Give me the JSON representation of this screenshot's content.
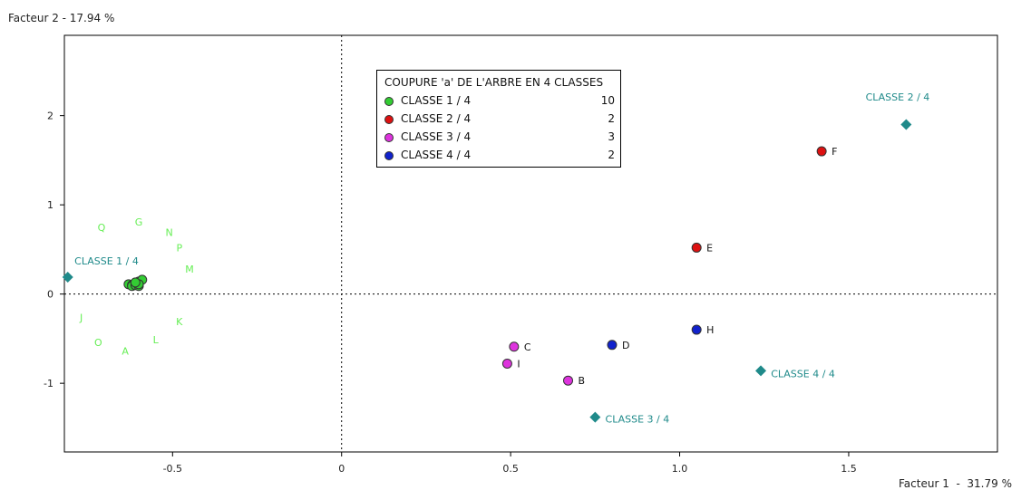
{
  "chart_data": {
    "type": "scatter",
    "title": "",
    "xlabel": "Facteur 1  -  31.79 %",
    "ylabel": "Facteur 2  -  17.94 %",
    "xlim": [
      -0.82,
      1.94
    ],
    "ylim": [
      -1.77,
      2.9
    ],
    "xticks": [
      -0.5,
      0,
      0.5,
      1.0,
      1.5
    ],
    "xtick_labels": [
      "-0.5",
      "0",
      "0.5",
      "1.0",
      "1.5"
    ],
    "yticks": [
      -1,
      0,
      1,
      2
    ],
    "ytick_labels": [
      "-1",
      "0",
      "1",
      "2"
    ],
    "grid": false,
    "reference_lines": {
      "x": 0,
      "y": 0,
      "style": "dotted"
    },
    "legend": {
      "title": "COUPURE 'a' DE L'ARBRE EN  4 CLASSES",
      "position": "top-center",
      "entries": [
        {
          "label": "CLASSE  1 / 4",
          "count": "10",
          "color": "#33cc33"
        },
        {
          "label": "CLASSE  2 / 4",
          "count": "2",
          "color": "#dd1111"
        },
        {
          "label": "CLASSE  3 / 4",
          "count": "3",
          "color": "#dd33dd"
        },
        {
          "label": "CLASSE  4 / 4",
          "count": "2",
          "color": "#1122cc"
        }
      ]
    },
    "series": [
      {
        "name": "CLASSE  1 / 4",
        "color": "#33cc33",
        "label_color": "#66ee55",
        "points": [
          {
            "label": "Q",
            "x": -0.63,
            "y": 0.11
          },
          {
            "label": "G",
            "x": -0.61,
            "y": 0.12
          },
          {
            "label": "N",
            "x": -0.62,
            "y": 0.1
          },
          {
            "label": "P",
            "x": -0.6,
            "y": 0.14
          },
          {
            "label": "M",
            "x": -0.59,
            "y": 0.16
          },
          {
            "label": "J",
            "x": -0.62,
            "y": 0.09
          },
          {
            "label": "O",
            "x": -0.61,
            "y": 0.1
          },
          {
            "label": "A",
            "x": -0.6,
            "y": 0.09
          },
          {
            "label": "L",
            "x": -0.6,
            "y": 0.11
          },
          {
            "label": "K",
            "x": -0.61,
            "y": 0.13
          }
        ],
        "label_points": [
          {
            "label": "Q",
            "x": -0.71,
            "y": 0.75
          },
          {
            "label": "G",
            "x": -0.6,
            "y": 0.81
          },
          {
            "label": "N",
            "x": -0.51,
            "y": 0.69
          },
          {
            "label": "P",
            "x": -0.48,
            "y": 0.52
          },
          {
            "label": "M",
            "x": -0.45,
            "y": 0.28
          },
          {
            "label": "J",
            "x": -0.77,
            "y": -0.26
          },
          {
            "label": "O",
            "x": -0.72,
            "y": -0.54
          },
          {
            "label": "A",
            "x": -0.64,
            "y": -0.64
          },
          {
            "label": "L",
            "x": -0.55,
            "y": -0.51
          },
          {
            "label": "K",
            "x": -0.48,
            "y": -0.31
          }
        ]
      },
      {
        "name": "CLASSE  2 / 4",
        "color": "#dd1111",
        "label_color": "#111111",
        "points": [
          {
            "label": "F",
            "x": 1.42,
            "y": 1.6
          },
          {
            "label": "E",
            "x": 1.05,
            "y": 0.52
          }
        ]
      },
      {
        "name": "CLASSE  3 / 4",
        "color": "#dd33dd",
        "label_color": "#111111",
        "points": [
          {
            "label": "C",
            "x": 0.51,
            "y": -0.59
          },
          {
            "label": "I",
            "x": 0.49,
            "y": -0.78
          },
          {
            "label": "B",
            "x": 0.67,
            "y": -0.97
          }
        ]
      },
      {
        "name": "CLASSE  4 / 4",
        "color": "#1122cc",
        "label_color": "#111111",
        "points": [
          {
            "label": "D",
            "x": 0.8,
            "y": -0.57
          },
          {
            "label": "H",
            "x": 1.05,
            "y": -0.4
          }
        ]
      }
    ],
    "centroids": {
      "color": "#1f8a8a",
      "items": [
        {
          "label": "CLASSE  1 / 4",
          "x": -0.81,
          "y": 0.19,
          "label_x": -0.79,
          "label_y": 0.37
        },
        {
          "label": "CLASSE  2 / 4",
          "x": 1.67,
          "y": 1.9,
          "label_x": 1.55,
          "label_y": 2.21
        },
        {
          "label": "CLASSE  3 / 4",
          "x": 0.75,
          "y": -1.38,
          "label_x": 0.78,
          "label_y": -1.4
        },
        {
          "label": "CLASSE  4 / 4",
          "x": 1.24,
          "y": -0.86,
          "label_x": 1.27,
          "label_y": -0.89
        }
      ]
    }
  }
}
